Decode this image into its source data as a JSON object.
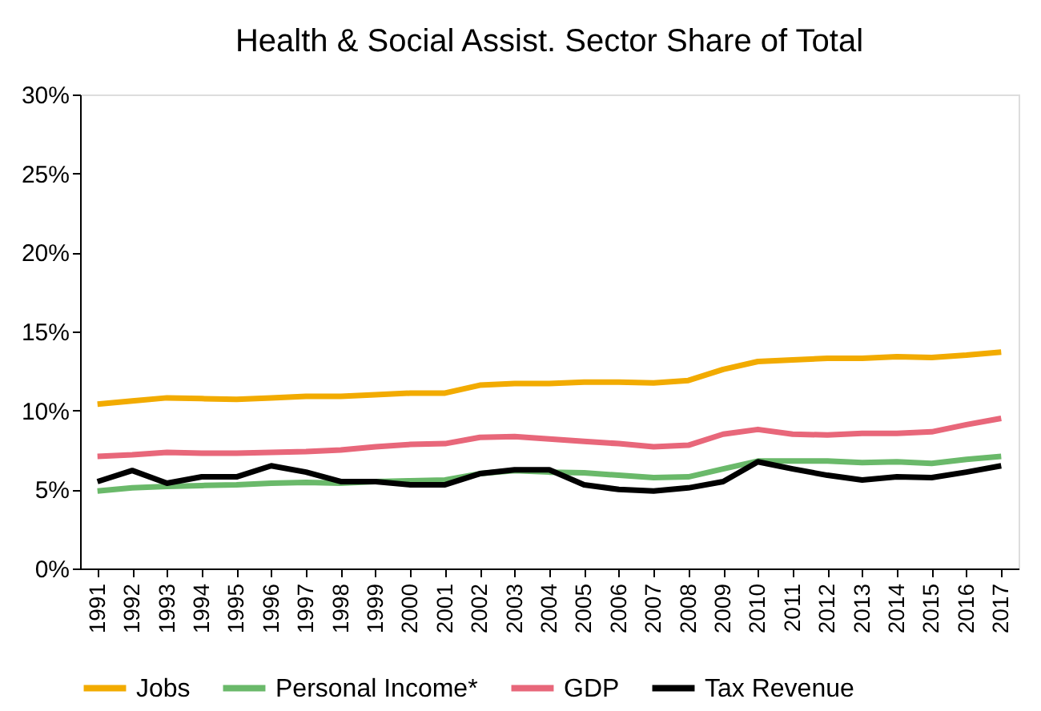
{
  "chart_data": {
    "type": "line",
    "title": "Health & Social Assist. Sector Share of Total",
    "categories": [
      "1991",
      "1992",
      "1993",
      "1994",
      "1995",
      "1996",
      "1997",
      "1998",
      "1999",
      "2000",
      "2001",
      "2002",
      "2003",
      "2004",
      "2005",
      "2006",
      "2007",
      "2008",
      "2009",
      "2010",
      "2011",
      "2012",
      "2013",
      "2014",
      "2015",
      "2016",
      "2017"
    ],
    "series": [
      {
        "name": "Jobs",
        "color": "#f2ab00",
        "values": [
          10.4,
          10.6,
          10.8,
          10.75,
          10.7,
          10.8,
          10.9,
          10.9,
          11.0,
          11.1,
          11.1,
          11.6,
          11.7,
          11.7,
          11.8,
          11.8,
          11.75,
          11.9,
          12.6,
          13.1,
          13.2,
          13.3,
          13.3,
          13.4,
          13.35,
          13.5,
          13.7
        ]
      },
      {
        "name": "Personal Income*",
        "color": "#6ab96a",
        "values": [
          4.9,
          5.1,
          5.2,
          5.25,
          5.3,
          5.4,
          5.45,
          5.4,
          5.5,
          5.55,
          5.6,
          6.0,
          6.2,
          6.1,
          6.05,
          5.9,
          5.75,
          5.8,
          6.3,
          6.8,
          6.8,
          6.8,
          6.7,
          6.75,
          6.65,
          6.9,
          7.1
        ]
      },
      {
        "name": "GDP",
        "color": "#e8677a",
        "values": [
          7.1,
          7.2,
          7.35,
          7.3,
          7.3,
          7.35,
          7.4,
          7.5,
          7.7,
          7.85,
          7.9,
          8.3,
          8.35,
          8.2,
          8.05,
          7.9,
          7.7,
          7.8,
          8.5,
          8.8,
          8.5,
          8.45,
          8.55,
          8.55,
          8.65,
          9.1,
          9.5
        ]
      },
      {
        "name": "Tax Revenue",
        "color": "#000000",
        "values": [
          5.5,
          6.2,
          5.4,
          5.8,
          5.8,
          6.5,
          6.1,
          5.5,
          5.5,
          5.3,
          5.3,
          6.0,
          6.25,
          6.25,
          5.3,
          5.0,
          4.9,
          5.1,
          5.5,
          6.75,
          6.3,
          5.9,
          5.6,
          5.8,
          5.75,
          6.1,
          6.5
        ]
      }
    ],
    "ylim": [
      0,
      30
    ],
    "yticks": [
      {
        "value": 0,
        "label": "0%"
      },
      {
        "value": 5,
        "label": "5%"
      },
      {
        "value": 10,
        "label": "10%"
      },
      {
        "value": 15,
        "label": "15%"
      },
      {
        "value": 20,
        "label": "20%"
      },
      {
        "value": 25,
        "label": "25%"
      },
      {
        "value": 30,
        "label": "30%"
      }
    ],
    "grid": false,
    "legend": "bottom",
    "marker": "none",
    "line_style": "solid"
  }
}
